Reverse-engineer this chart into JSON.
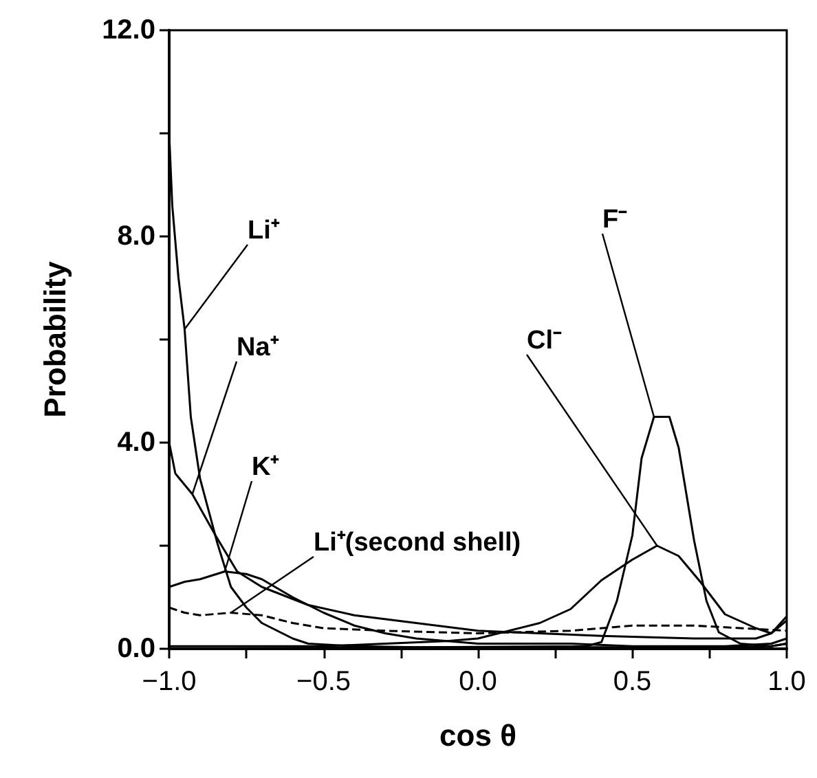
{
  "chart_data": {
    "type": "line",
    "xlabel": "cos θ",
    "ylabel": "Probability",
    "xlim": [
      -1,
      1
    ],
    "ylim": [
      0,
      12
    ],
    "xticks": [
      {
        "value": -1,
        "label": "−1.0"
      },
      {
        "value": -0.75,
        "label": null
      },
      {
        "value": -0.5,
        "label": "−0.5"
      },
      {
        "value": -0.25,
        "label": null
      },
      {
        "value": 0,
        "label": "0.0"
      },
      {
        "value": 0.25,
        "label": null
      },
      {
        "value": 0.5,
        "label": "0.5"
      },
      {
        "value": 0.75,
        "label": null
      },
      {
        "value": 1,
        "label": "1.0"
      }
    ],
    "yticks": [
      {
        "value": 0,
        "label": "0.0"
      },
      {
        "value": 2,
        "label": null
      },
      {
        "value": 4,
        "label": "4.0"
      },
      {
        "value": 6,
        "label": null
      },
      {
        "value": 8,
        "label": "8.0"
      },
      {
        "value": 10,
        "label": null
      },
      {
        "value": 12,
        "label": "12.0"
      }
    ],
    "grid": false,
    "legend": false,
    "marker": "none",
    "series": [
      {
        "name": "Li⁺",
        "color": "#000000",
        "x": [
          -1,
          -0.99,
          -0.97,
          -0.95,
          -0.93,
          -0.9,
          -0.844,
          -0.8,
          -0.75,
          -0.7,
          -0.6,
          -0.55,
          -0.4,
          -0.2,
          0,
          0.4,
          0.8,
          0.95,
          1
        ],
        "values": [
          10.0,
          8.6,
          7.2,
          6.2,
          4.5,
          3.3,
          2.05,
          1.2,
          0.8,
          0.5,
          0.2,
          0.1,
          0.05,
          0.03,
          0.03,
          0.03,
          0.03,
          0.05,
          0.1
        ]
      },
      {
        "name": "Na⁺",
        "color": "#000000",
        "x": [
          -1,
          -0.98,
          -0.925,
          -0.85,
          -0.78,
          -0.7,
          -0.55,
          -0.4,
          -0.2,
          0,
          0.2,
          0.4,
          0.7,
          0.9,
          0.95,
          1
        ],
        "values": [
          4.0,
          3.4,
          3.0,
          2.2,
          1.5,
          1.2,
          0.85,
          0.65,
          0.5,
          0.35,
          0.3,
          0.25,
          0.2,
          0.2,
          0.3,
          0.55
        ]
      },
      {
        "name": "K⁺",
        "color": "#000000",
        "x": [
          -1,
          -0.95,
          -0.9,
          -0.82,
          -0.75,
          -0.7,
          -0.6,
          -0.5,
          -0.4,
          -0.3,
          -0.2,
          0,
          0.3,
          0.5,
          0.8,
          0.95,
          1
        ],
        "values": [
          1.2,
          1.3,
          1.35,
          1.5,
          1.45,
          1.35,
          1.0,
          0.7,
          0.45,
          0.3,
          0.2,
          0.1,
          0.1,
          0.05,
          0.05,
          0.1,
          0.2
        ]
      },
      {
        "name": "Li⁺(second shell)",
        "color": "#000000",
        "line_style": "dashed",
        "x": [
          -1,
          -0.95,
          -0.9,
          -0.8,
          -0.7,
          -0.6,
          -0.5,
          -0.3,
          0,
          0.3,
          0.5,
          0.7,
          0.85,
          1
        ],
        "values": [
          0.8,
          0.7,
          0.65,
          0.7,
          0.65,
          0.5,
          0.4,
          0.35,
          0.3,
          0.35,
          0.45,
          0.45,
          0.4,
          0.35
        ]
      },
      {
        "name": "F⁻",
        "color": "#000000",
        "x": [
          -1,
          0.35,
          0.4,
          0.45,
          0.5,
          0.53,
          0.57,
          0.62,
          0.65,
          0.7,
          0.74,
          0.78,
          0.85,
          0.95,
          1
        ],
        "values": [
          0,
          0.05,
          0.13,
          0.93,
          2.2,
          3.7,
          4.5,
          4.5,
          3.9,
          2.1,
          0.93,
          0.32,
          0.1,
          0.05,
          0.1
        ]
      },
      {
        "name": "Cl⁻",
        "color": "#000000",
        "x": [
          -1,
          -0.5,
          -0.3,
          -0.1,
          0,
          0.2,
          0.3,
          0.4,
          0.5,
          0.58,
          0.65,
          0.72,
          0.8,
          0.9,
          0.95,
          1
        ],
        "values": [
          0.05,
          0.05,
          0.1,
          0.15,
          0.2,
          0.5,
          0.77,
          1.33,
          1.73,
          2.0,
          1.8,
          1.3,
          0.67,
          0.4,
          0.3,
          0.63
        ]
      }
    ]
  }
}
